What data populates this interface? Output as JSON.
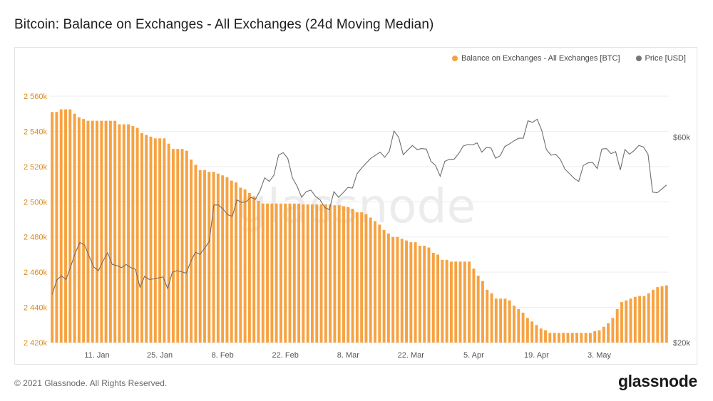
{
  "title": "Bitcoin: Balance on Exchanges - All Exchanges (24d Moving Median)",
  "legend": {
    "series1": "Balance on Exchanges - All Exchanges [BTC]",
    "series2": "Price [USD]"
  },
  "footer": "© 2021 Glassnode. All Rights Reserved.",
  "brand": "glassnode",
  "watermark": "glassnode",
  "colors": {
    "bar": "#f7a241",
    "price": "#6e6e6e",
    "axis_left": "#d98b1f"
  },
  "chart_data": {
    "type": "bar",
    "title": "Bitcoin: Balance on Exchanges - All Exchanges (24d Moving Median)",
    "x_ticks": [
      "11. Jan",
      "25. Jan",
      "8. Feb",
      "22. Feb",
      "8. Mar",
      "22. Mar",
      "5. Apr",
      "19. Apr",
      "3. May"
    ],
    "y_left": {
      "label": "Balance on Exchanges [BTC]",
      "ylim": [
        2420000,
        2560000
      ],
      "ticks": [
        "2 420k",
        "2 440k",
        "2 460k",
        "2 480k",
        "2 500k",
        "2 520k",
        "2 540k",
        "2 560k"
      ]
    },
    "y_right": {
      "label": "Price [USD]",
      "ylim": [
        20000,
        68000
      ],
      "ticks": [
        "$20k",
        "$60k"
      ]
    },
    "x_range_days": {
      "start": "2021-01-01",
      "end": "2021-05-17",
      "tick_day_offsets": [
        10,
        24,
        38,
        52,
        66,
        80,
        94,
        108,
        122
      ]
    },
    "series": [
      {
        "name": "Balance on Exchanges - All Exchanges [BTC]",
        "kind": "bar",
        "values": [
          2551000,
          2551000,
          2552500,
          2552500,
          2552500,
          2550000,
          2548000,
          2547000,
          2546000,
          2546000,
          2546000,
          2546000,
          2546000,
          2546000,
          2546000,
          2544000,
          2544000,
          2544000,
          2543000,
          2542000,
          2539000,
          2538000,
          2537000,
          2536000,
          2536000,
          2536000,
          2533000,
          2530000,
          2530000,
          2530000,
          2529000,
          2524000,
          2521000,
          2518000,
          2518000,
          2517000,
          2517000,
          2516000,
          2515000,
          2514000,
          2512000,
          2511000,
          2508000,
          2507000,
          2505000,
          2503000,
          2500500,
          2499000,
          2499000,
          2499000,
          2499000,
          2499000,
          2499000,
          2499000,
          2499000,
          2499000,
          2498500,
          2498500,
          2498500,
          2498500,
          2498500,
          2498500,
          2498500,
          2498000,
          2498000,
          2497500,
          2497000,
          2496000,
          2494000,
          2494000,
          2493000,
          2491000,
          2489000,
          2487000,
          2484000,
          2482000,
          2480000,
          2480000,
          2479000,
          2478000,
          2477000,
          2477000,
          2475000,
          2475000,
          2474000,
          2471000,
          2470000,
          2467000,
          2467000,
          2466000,
          2466000,
          2466000,
          2466000,
          2466000,
          2462000,
          2458000,
          2455000,
          2450000,
          2448000,
          2445000,
          2445000,
          2445000,
          2444000,
          2441000,
          2439000,
          2437000,
          2434000,
          2432000,
          2430000,
          2428000,
          2427000,
          2425500,
          2425500,
          2425500,
          2425500,
          2425500,
          2425500,
          2425500,
          2425500,
          2425500,
          2425500,
          2426500,
          2427000,
          2429000,
          2431000,
          2434000,
          2439000,
          2443000,
          2444000,
          2445000,
          2446000,
          2446500,
          2446500,
          2448000,
          2450000,
          2451500,
          2452000,
          2452500
        ]
      },
      {
        "name": "Price [USD]",
        "kind": "line",
        "values": [
          29400,
          32200,
          33000,
          32300,
          34800,
          37500,
          39500,
          39000,
          36800,
          34700,
          34000,
          35900,
          37500,
          35200,
          35000,
          34600,
          35200,
          34600,
          34300,
          30800,
          32900,
          32300,
          32400,
          32600,
          32800,
          30500,
          33700,
          34000,
          33800,
          33500,
          35800,
          37600,
          37200,
          38400,
          39700,
          46800,
          46800,
          46000,
          44900,
          44600,
          47800,
          47300,
          47400,
          48300,
          47900,
          49600,
          52100,
          51400,
          52600,
          56500,
          57000,
          55900,
          52100,
          50500,
          48300,
          49400,
          49700,
          48500,
          47800,
          46300,
          45900,
          49400,
          48300,
          49200,
          50200,
          50100,
          52900,
          54000,
          55000,
          55900,
          56500,
          57100,
          56100,
          57300,
          61200,
          60000,
          56600,
          57500,
          58400,
          57600,
          57800,
          57700,
          55300,
          54500,
          52400,
          55300,
          55700,
          55700,
          56800,
          58300,
          58600,
          58500,
          58900,
          57100,
          58000,
          57900,
          55900,
          56400,
          58200,
          58700,
          59300,
          59800,
          59800,
          63200,
          62900,
          63500,
          61300,
          57600,
          56500,
          56700,
          55700,
          53800,
          52900,
          52000,
          51400,
          54500,
          55000,
          55100,
          53900,
          57700,
          57800,
          56800,
          57200,
          53600,
          57600,
          56700,
          57400,
          58400,
          58100,
          56700,
          49300,
          49200,
          49900,
          50700
        ]
      }
    ]
  }
}
